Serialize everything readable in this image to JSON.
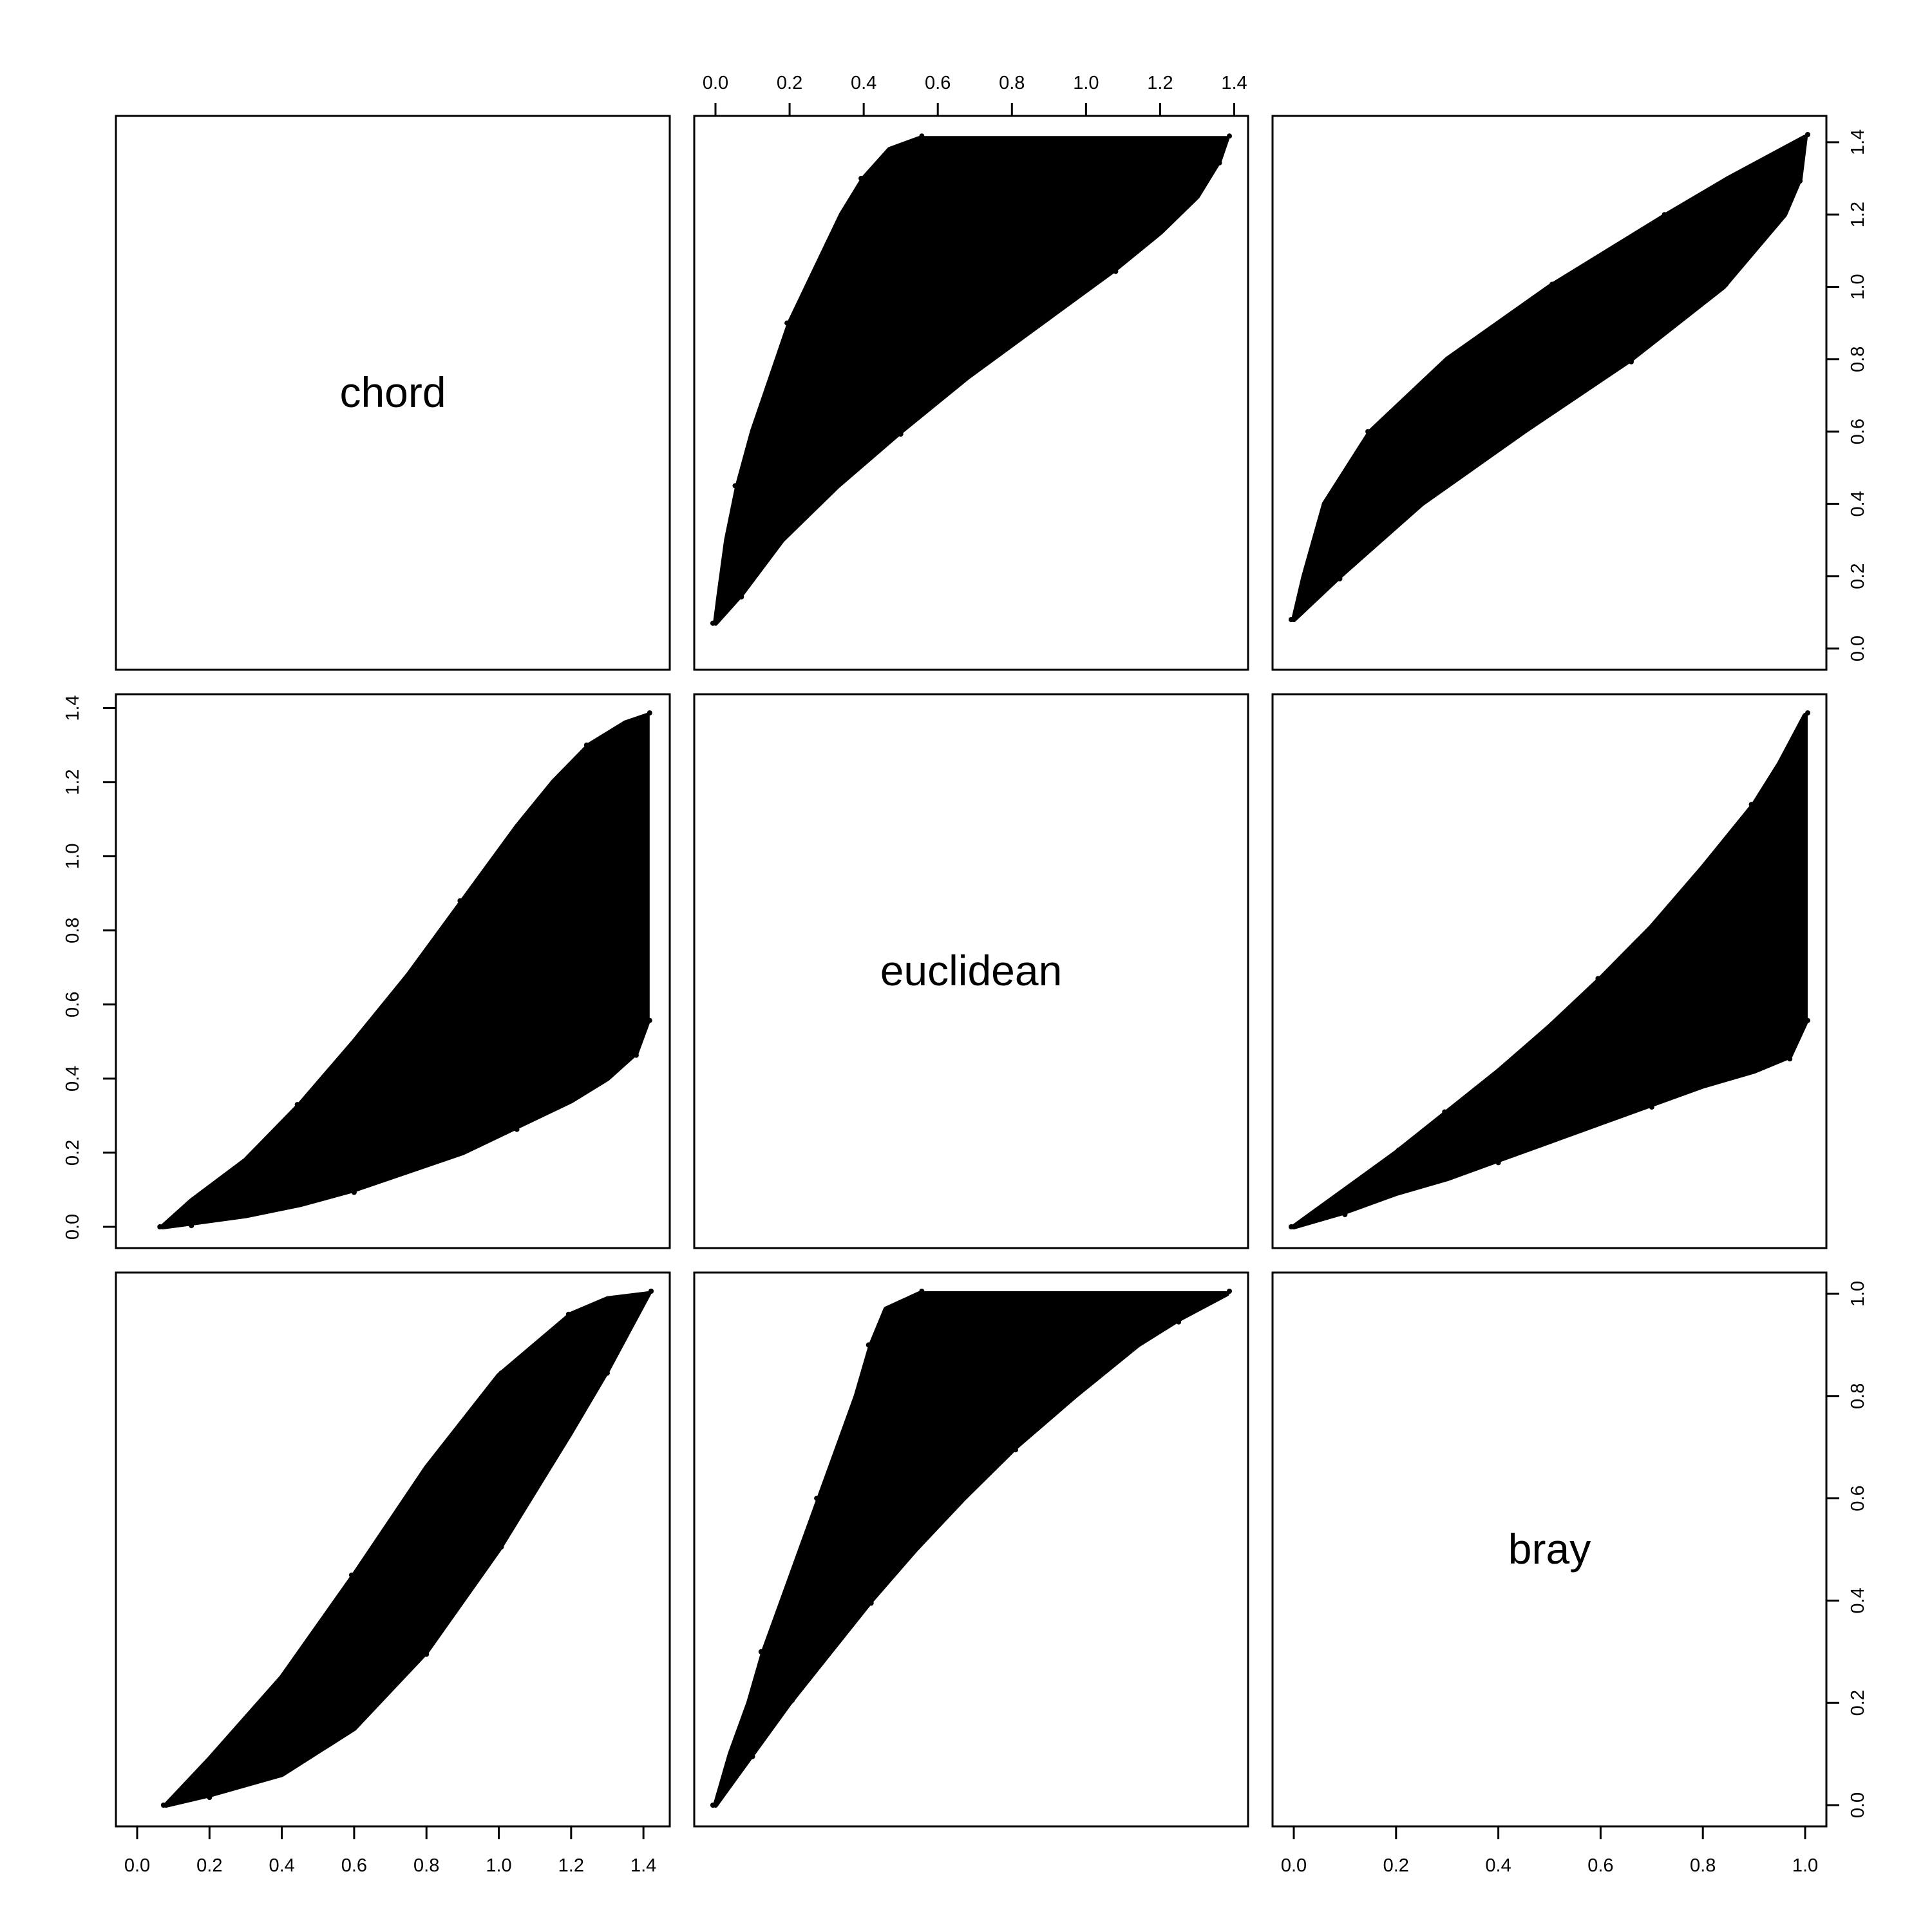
{
  "chart_data": {
    "type": "scatter-matrix",
    "title": "",
    "variables": [
      "chord",
      "euclidean",
      "bray"
    ],
    "ranges": {
      "chord": [
        0,
        1.414
      ],
      "euclidean": [
        0,
        1.38
      ],
      "bray": [
        0,
        1.0
      ]
    },
    "ticks": {
      "chord": [
        0.0,
        0.2,
        0.4,
        0.6,
        0.8,
        1.0,
        1.2,
        1.4
      ],
      "euclidean": [
        0.0,
        0.2,
        0.4,
        0.6,
        0.8,
        1.0,
        1.2,
        1.4
      ],
      "bray": [
        0.0,
        0.2,
        0.4,
        0.6,
        0.8,
        1.0
      ]
    },
    "tick_labels": {
      "chord": [
        "0.0",
        "0.2",
        "0.4",
        "0.6",
        "0.8",
        "1.0",
        "1.2",
        "1.4"
      ],
      "euclidean": [
        "0.0",
        "0.2",
        "0.4",
        "0.6",
        "0.8",
        "1.0",
        "1.2",
        "1.4"
      ],
      "bray": [
        "0.0",
        "0.2",
        "0.4",
        "0.6",
        "0.8",
        "1.0"
      ]
    },
    "point_clouds": [
      {
        "x_var": "chord",
        "y_var": "euclidean",
        "upper": [
          [
            0.07,
            0.0
          ],
          [
            0.15,
            0.07
          ],
          [
            0.3,
            0.18
          ],
          [
            0.45,
            0.33
          ],
          [
            0.6,
            0.5
          ],
          [
            0.75,
            0.68
          ],
          [
            0.9,
            0.88
          ],
          [
            1.05,
            1.08
          ],
          [
            1.15,
            1.2
          ],
          [
            1.25,
            1.3
          ],
          [
            1.35,
            1.36
          ],
          [
            1.41,
            1.38
          ]
        ],
        "lower": [
          [
            0.07,
            0.0
          ],
          [
            0.15,
            0.01
          ],
          [
            0.3,
            0.03
          ],
          [
            0.45,
            0.06
          ],
          [
            0.6,
            0.1
          ],
          [
            0.75,
            0.15
          ],
          [
            0.9,
            0.2
          ],
          [
            1.05,
            0.27
          ],
          [
            1.2,
            0.34
          ],
          [
            1.3,
            0.4
          ],
          [
            1.38,
            0.47
          ],
          [
            1.41,
            0.55
          ]
        ]
      },
      {
        "x_var": "bray",
        "y_var": "euclidean",
        "upper": [
          [
            0.0,
            0.0
          ],
          [
            0.1,
            0.1
          ],
          [
            0.2,
            0.2
          ],
          [
            0.3,
            0.31
          ],
          [
            0.4,
            0.42
          ],
          [
            0.5,
            0.54
          ],
          [
            0.6,
            0.67
          ],
          [
            0.7,
            0.81
          ],
          [
            0.8,
            0.97
          ],
          [
            0.9,
            1.14
          ],
          [
            0.95,
            1.25
          ],
          [
            1.0,
            1.38
          ]
        ],
        "lower": [
          [
            0.0,
            0.0
          ],
          [
            0.1,
            0.04
          ],
          [
            0.2,
            0.09
          ],
          [
            0.3,
            0.13
          ],
          [
            0.4,
            0.18
          ],
          [
            0.5,
            0.23
          ],
          [
            0.6,
            0.28
          ],
          [
            0.7,
            0.33
          ],
          [
            0.8,
            0.38
          ],
          [
            0.9,
            0.42
          ],
          [
            0.97,
            0.46
          ],
          [
            1.0,
            0.55
          ]
        ]
      },
      {
        "x_var": "chord",
        "y_var": "bray",
        "upper": [
          [
            0.08,
            0.0
          ],
          [
            0.2,
            0.09
          ],
          [
            0.4,
            0.25
          ],
          [
            0.6,
            0.45
          ],
          [
            0.8,
            0.66
          ],
          [
            1.0,
            0.84
          ],
          [
            1.2,
            0.96
          ],
          [
            1.3,
            0.99
          ],
          [
            1.414,
            1.0
          ]
        ],
        "lower": [
          [
            0.08,
            0.0
          ],
          [
            0.2,
            0.02
          ],
          [
            0.4,
            0.06
          ],
          [
            0.6,
            0.15
          ],
          [
            0.8,
            0.3
          ],
          [
            1.0,
            0.5
          ],
          [
            1.2,
            0.73
          ],
          [
            1.3,
            0.85
          ],
          [
            1.414,
            1.0
          ]
        ]
      }
    ],
    "grid": false,
    "legend": "none",
    "point_color": "#000000"
  }
}
